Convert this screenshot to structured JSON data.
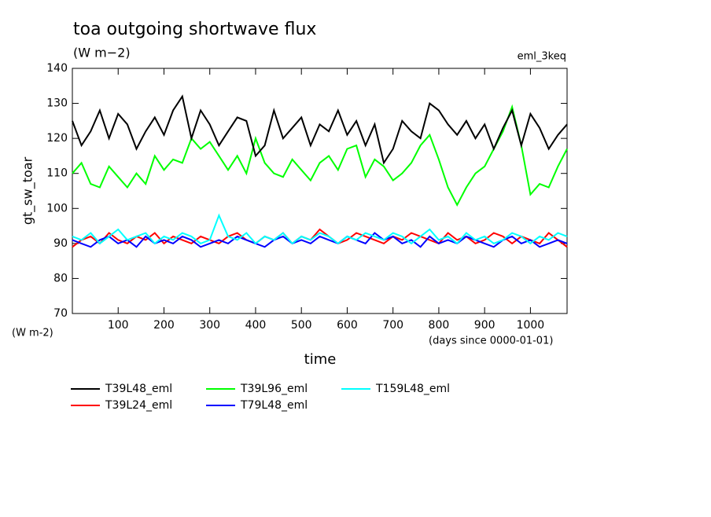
{
  "chart_data": {
    "type": "line",
    "title": "toa outgoing shortwave flux",
    "subtitle": "(W m−2)",
    "annotation": "eml_3keq",
    "y_label": "gt_sw_toar",
    "y_unit": "(W m-2)",
    "x_unit": "(days since 0000-01-01)",
    "x_label": "time",
    "xlim": [
      0,
      1080
    ],
    "ylim": [
      70,
      140
    ],
    "xticks": [
      100,
      200,
      300,
      400,
      500,
      600,
      700,
      800,
      900,
      1000
    ],
    "yticks": [
      70,
      80,
      90,
      100,
      110,
      120,
      130,
      140
    ],
    "x": [
      0,
      20,
      40,
      60,
      80,
      100,
      120,
      140,
      160,
      180,
      200,
      220,
      240,
      260,
      280,
      300,
      320,
      340,
      360,
      380,
      400,
      420,
      440,
      460,
      480,
      500,
      520,
      540,
      560,
      580,
      600,
      620,
      640,
      660,
      680,
      700,
      720,
      740,
      760,
      780,
      800,
      820,
      840,
      860,
      880,
      900,
      920,
      940,
      960,
      980,
      1000,
      1020,
      1040,
      1060,
      1080
    ],
    "series": [
      {
        "name": "T39L48_eml",
        "color": "#000000",
        "values": [
          125,
          118,
          122,
          128,
          120,
          127,
          124,
          117,
          122,
          126,
          121,
          128,
          132,
          120,
          128,
          124,
          118,
          122,
          126,
          125,
          115,
          118,
          128,
          120,
          123,
          126,
          118,
          124,
          122,
          128,
          121,
          125,
          118,
          124,
          113,
          117,
          125,
          122,
          120,
          130,
          128,
          124,
          121,
          125,
          120,
          124,
          117,
          123,
          128,
          118,
          127,
          123,
          117,
          121,
          124
        ]
      },
      {
        "name": "T39L96_eml",
        "color": "#00ff00",
        "values": [
          110,
          113,
          107,
          106,
          112,
          109,
          106,
          110,
          107,
          115,
          111,
          114,
          113,
          120,
          117,
          119,
          115,
          111,
          115,
          110,
          120,
          113,
          110,
          109,
          114,
          111,
          108,
          113,
          115,
          111,
          117,
          118,
          109,
          114,
          112,
          108,
          110,
          113,
          118,
          121,
          114,
          106,
          101,
          106,
          110,
          112,
          117,
          122,
          129,
          118,
          104,
          107,
          106,
          112,
          117
        ]
      },
      {
        "name": "T159L48_eml",
        "color": "#00ffff",
        "values": [
          92,
          91,
          93,
          90,
          92,
          94,
          91,
          92,
          93,
          90,
          92,
          91,
          93,
          92,
          90,
          91,
          98,
          92,
          91,
          93,
          90,
          92,
          91,
          93,
          90,
          92,
          91,
          93,
          92,
          90,
          92,
          91,
          93,
          92,
          91,
          93,
          92,
          90,
          92,
          94,
          91,
          92,
          90,
          93,
          91,
          92,
          90,
          91,
          93,
          92,
          90,
          92,
          91,
          93,
          92
        ]
      },
      {
        "name": "T39L24_eml",
        "color": "#ff0000",
        "values": [
          89,
          91,
          92,
          90,
          93,
          91,
          90,
          92,
          91,
          93,
          90,
          92,
          91,
          90,
          92,
          91,
          90,
          92,
          93,
          91,
          90,
          92,
          91,
          93,
          90,
          92,
          91,
          94,
          92,
          90,
          91,
          93,
          92,
          91,
          90,
          92,
          91,
          93,
          92,
          91,
          90,
          93,
          91,
          92,
          90,
          91,
          93,
          92,
          90,
          92,
          91,
          90,
          93,
          91,
          89
        ]
      },
      {
        "name": "T79L48_eml",
        "color": "#0000ff",
        "values": [
          91,
          90,
          89,
          91,
          92,
          90,
          91,
          89,
          92,
          90,
          91,
          90,
          92,
          91,
          89,
          90,
          91,
          90,
          92,
          91,
          90,
          89,
          91,
          92,
          90,
          91,
          90,
          92,
          91,
          90,
          92,
          91,
          90,
          93,
          91,
          92,
          90,
          91,
          89,
          92,
          90,
          91,
          90,
          92,
          91,
          90,
          89,
          91,
          92,
          90,
          91,
          89,
          90,
          91,
          90
        ]
      }
    ]
  }
}
